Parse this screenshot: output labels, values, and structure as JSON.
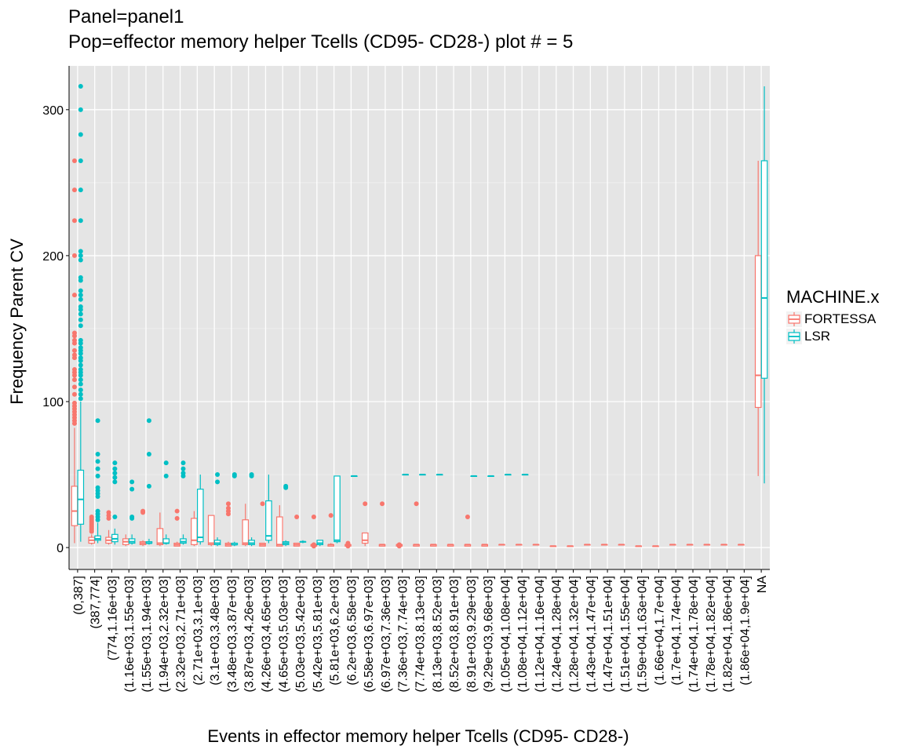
{
  "chart_data": {
    "type": "boxplot",
    "title": "Panel=panel1",
    "subtitle": "Pop=effector memory helper Tcells (CD95- CD28-) plot # = 5",
    "xlabel": "Events in effector memory helper Tcells (CD95- CD28-)",
    "ylabel": "Frequency Parent CV",
    "ylim": [
      -15,
      330
    ],
    "yticks": [
      0,
      100,
      200,
      300
    ],
    "grid": true,
    "legend": {
      "title": "MACHINE.x",
      "placement": "right",
      "entries": [
        {
          "name": "FORTESSA",
          "color": "#F8766D"
        },
        {
          "name": "LSR",
          "color": "#00BFC4"
        }
      ]
    },
    "categories": [
      "(0,387]",
      "(387,774]",
      "(774,1.16e+03]",
      "(1.16e+03,1.55e+03]",
      "(1.55e+03,1.94e+03]",
      "(1.94e+03,2.32e+03]",
      "(2.32e+03,2.71e+03]",
      "(2.71e+03,3.1e+03]",
      "(3.1e+03,3.48e+03]",
      "(3.48e+03,3.87e+03]",
      "(3.87e+03,4.26e+03]",
      "(4.26e+03,4.65e+03]",
      "(4.65e+03,5.03e+03]",
      "(5.03e+03,5.42e+03]",
      "(5.42e+03,5.81e+03]",
      "(5.81e+03,6.2e+03]",
      "(6.2e+03,6.58e+03]",
      "(6.58e+03,6.97e+03]",
      "(6.97e+03,7.36e+03]",
      "(7.36e+03,7.74e+03]",
      "(7.74e+03,8.13e+03]",
      "(8.13e+03,8.52e+03]",
      "(8.52e+03,8.91e+03]",
      "(8.91e+03,9.29e+03]",
      "(9.29e+03,9.68e+03]",
      "(1.05e+04,1.08e+04]",
      "(1.08e+04,1.12e+04]",
      "(1.12e+04,1.16e+04]",
      "(1.24e+04,1.28e+04]",
      "(1.28e+04,1.32e+04]",
      "(1.43e+04,1.47e+04]",
      "(1.47e+04,1.51e+04]",
      "(1.51e+04,1.55e+04]",
      "(1.59e+04,1.63e+04]",
      "(1.66e+04,1.7e+04]",
      "(1.7e+04,1.74e+04]",
      "(1.74e+04,1.78e+04]",
      "(1.78e+04,1.82e+04]",
      "(1.82e+04,1.86e+04]",
      "(1.86e+04,1.9e+04]",
      "NA"
    ],
    "series": [
      {
        "name": "FORTESSA",
        "color": "#F8766D",
        "boxes": [
          {
            "cat": 0,
            "min": 3,
            "q1": 15,
            "median": 25,
            "q3": 42,
            "max": 82,
            "outliers": [
              85,
              87,
              89,
              91,
              93,
              95,
              97,
              99,
              105,
              110,
              115,
              118,
              120,
              122,
              130,
              132,
              135,
              140,
              142,
              145,
              147,
              173,
              200,
              224,
              245,
              265
            ]
          },
          {
            "cat": 1,
            "min": 2,
            "q1": 3,
            "median": 5,
            "q3": 7,
            "max": 9,
            "outliers": [
              11,
              12,
              13,
              14,
              15,
              16,
              17,
              18,
              19,
              20,
              21
            ]
          },
          {
            "cat": 2,
            "min": 2,
            "q1": 3,
            "median": 5,
            "q3": 7,
            "max": 12,
            "outliers": [
              20,
              22,
              24
            ]
          },
          {
            "cat": 3,
            "min": 1,
            "q1": 2,
            "median": 4,
            "q3": 6,
            "max": 9,
            "outliers": []
          },
          {
            "cat": 4,
            "min": 1,
            "q1": 2,
            "median": 3,
            "q3": 4,
            "max": 5,
            "outliers": [
              24,
              25
            ]
          },
          {
            "cat": 5,
            "min": 1,
            "q1": 2,
            "median": 3,
            "q3": 13,
            "max": 24,
            "outliers": []
          },
          {
            "cat": 6,
            "min": 1,
            "q1": 1,
            "median": 2,
            "q3": 3,
            "max": 4,
            "outliers": [
              20,
              25
            ]
          },
          {
            "cat": 7,
            "min": 1,
            "q1": 2,
            "median": 5,
            "q3": 20,
            "max": 25,
            "outliers": []
          },
          {
            "cat": 8,
            "min": 1,
            "q1": 2,
            "median": 3,
            "q3": 22,
            "max": 22,
            "outliers": []
          },
          {
            "cat": 9,
            "min": 1,
            "q1": 1,
            "median": 2,
            "q3": 3,
            "max": 4,
            "outliers": [
              23,
              25,
              27,
              30
            ]
          },
          {
            "cat": 10,
            "min": 1,
            "q1": 2,
            "median": 3,
            "q3": 19,
            "max": 30,
            "outliers": []
          },
          {
            "cat": 11,
            "min": 1,
            "q1": 1,
            "median": 2,
            "q3": 3,
            "max": 3,
            "outliers": [
              30
            ]
          },
          {
            "cat": 12,
            "min": 1,
            "q1": 1,
            "median": 2,
            "q3": 21,
            "max": 29,
            "outliers": []
          },
          {
            "cat": 13,
            "min": 1,
            "q1": 1,
            "median": 2,
            "q3": 3,
            "max": 3,
            "outliers": [
              21
            ]
          },
          {
            "cat": 14,
            "min": 1,
            "q1": 1,
            "median": 2,
            "q3": 2,
            "max": 3,
            "outliers": [
              1,
              2,
              21
            ]
          },
          {
            "cat": 15,
            "min": 1,
            "q1": 1,
            "median": 2,
            "q3": 2,
            "max": 3,
            "outliers": [
              22
            ]
          },
          {
            "cat": 16,
            "min": 1,
            "q1": 1,
            "median": 2,
            "q3": 2,
            "max": 3,
            "outliers": [
              1,
              3
            ]
          },
          {
            "cat": 17,
            "min": 1,
            "q1": 3,
            "median": 5,
            "q3": 10,
            "max": 10,
            "outliers": [
              30
            ]
          },
          {
            "cat": 18,
            "min": 1,
            "q1": 1,
            "median": 2,
            "q3": 2,
            "max": 2,
            "outliers": [
              30
            ]
          },
          {
            "cat": 19,
            "min": 1,
            "q1": 1,
            "median": 2,
            "q3": 2,
            "max": 2,
            "outliers": [
              1,
              2
            ]
          },
          {
            "cat": 20,
            "min": 1,
            "q1": 1,
            "median": 2,
            "q3": 2,
            "max": 2,
            "outliers": [
              30
            ]
          },
          {
            "cat": 21,
            "min": 1,
            "q1": 1,
            "median": 2,
            "q3": 2,
            "max": 2,
            "outliers": []
          },
          {
            "cat": 22,
            "min": 1,
            "q1": 1,
            "median": 2,
            "q3": 2,
            "max": 2,
            "outliers": []
          },
          {
            "cat": 23,
            "min": 1,
            "q1": 1,
            "median": 2,
            "q3": 2,
            "max": 2,
            "outliers": [
              21
            ]
          },
          {
            "cat": 24,
            "min": 1,
            "q1": 1,
            "median": 2,
            "q3": 2,
            "max": 2,
            "outliers": []
          },
          {
            "cat": 25,
            "min": 2,
            "q1": 2,
            "median": 2,
            "q3": 2,
            "max": 2,
            "outliers": []
          },
          {
            "cat": 26,
            "min": 2,
            "q1": 2,
            "median": 2,
            "q3": 2,
            "max": 2,
            "outliers": []
          },
          {
            "cat": 27,
            "min": 2,
            "q1": 2,
            "median": 2,
            "q3": 2,
            "max": 2,
            "outliers": []
          },
          {
            "cat": 28,
            "min": 1,
            "q1": 1,
            "median": 1,
            "q3": 1,
            "max": 1,
            "outliers": []
          },
          {
            "cat": 29,
            "min": 1,
            "q1": 1,
            "median": 1,
            "q3": 1,
            "max": 1,
            "outliers": []
          },
          {
            "cat": 30,
            "min": 2,
            "q1": 2,
            "median": 2,
            "q3": 2,
            "max": 2,
            "outliers": []
          },
          {
            "cat": 31,
            "min": 2,
            "q1": 2,
            "median": 2,
            "q3": 2,
            "max": 2,
            "outliers": []
          },
          {
            "cat": 32,
            "min": 2,
            "q1": 2,
            "median": 2,
            "q3": 2,
            "max": 2,
            "outliers": []
          },
          {
            "cat": 33,
            "min": 1,
            "q1": 1,
            "median": 1,
            "q3": 1,
            "max": 1,
            "outliers": []
          },
          {
            "cat": 34,
            "min": 1,
            "q1": 1,
            "median": 1,
            "q3": 1,
            "max": 1,
            "outliers": []
          },
          {
            "cat": 35,
            "min": 2,
            "q1": 2,
            "median": 2,
            "q3": 2,
            "max": 2,
            "outliers": []
          },
          {
            "cat": 36,
            "min": 2,
            "q1": 2,
            "median": 2,
            "q3": 2,
            "max": 2,
            "outliers": []
          },
          {
            "cat": 37,
            "min": 2,
            "q1": 2,
            "median": 2,
            "q3": 2,
            "max": 2,
            "outliers": []
          },
          {
            "cat": 38,
            "min": 2,
            "q1": 2,
            "median": 2,
            "q3": 2,
            "max": 2,
            "outliers": []
          },
          {
            "cat": 39,
            "min": 2,
            "q1": 2,
            "median": 2,
            "q3": 2,
            "max": 2,
            "outliers": []
          },
          {
            "cat": 40,
            "min": 49,
            "q1": 96,
            "median": 118,
            "q3": 200,
            "max": 265,
            "outliers": []
          }
        ]
      },
      {
        "name": "LSR",
        "color": "#00BFC4",
        "boxes": [
          {
            "cat": 0,
            "min": 4,
            "q1": 16,
            "median": 33,
            "q3": 53,
            "max": 100,
            "outliers": [
              102,
              105,
              108,
              112,
              115,
              118,
              120,
              122,
              125,
              128,
              130,
              133,
              135,
              137,
              140,
              142,
              152,
              156,
              160,
              163,
              165,
              170,
              173,
              176,
              183,
              185,
              197,
              200,
              203,
              224,
              245,
              265,
              283,
              300,
              316
            ]
          },
          {
            "cat": 1,
            "min": 3,
            "q1": 5,
            "median": 6,
            "q3": 8,
            "max": 17,
            "outliers": [
              19,
              21,
              23,
              25,
              35,
              37,
              39,
              41,
              49,
              54,
              59,
              64,
              87
            ]
          },
          {
            "cat": 2,
            "min": 2,
            "q1": 4,
            "median": 6,
            "q3": 9,
            "max": 13,
            "outliers": [
              21,
              45,
              48,
              51,
              54,
              58
            ]
          },
          {
            "cat": 3,
            "min": 2,
            "q1": 3,
            "median": 4,
            "q3": 6,
            "max": 9,
            "outliers": [
              20,
              21,
              40,
              45
            ]
          },
          {
            "cat": 4,
            "min": 2,
            "q1": 3,
            "median": 3,
            "q3": 4,
            "max": 6,
            "outliers": [
              42,
              64,
              87
            ]
          },
          {
            "cat": 5,
            "min": 2,
            "q1": 3,
            "median": 3,
            "q3": 6,
            "max": 9,
            "outliers": [
              49,
              58
            ]
          },
          {
            "cat": 6,
            "min": 2,
            "q1": 3,
            "median": 4,
            "q3": 6,
            "max": 9,
            "outliers": [
              49,
              51,
              54,
              58
            ]
          },
          {
            "cat": 7,
            "min": 2,
            "q1": 4,
            "median": 7,
            "q3": 40,
            "max": 50,
            "outliers": []
          },
          {
            "cat": 8,
            "min": 1,
            "q1": 2,
            "median": 3,
            "q3": 5,
            "max": 7,
            "outliers": [
              45,
              50
            ]
          },
          {
            "cat": 9,
            "min": 1,
            "q1": 2,
            "median": 2,
            "q3": 3,
            "max": 4,
            "outliers": [
              49,
              50
            ]
          },
          {
            "cat": 10,
            "min": 1,
            "q1": 2,
            "median": 3,
            "q3": 5,
            "max": 7,
            "outliers": [
              49,
              50
            ]
          },
          {
            "cat": 11,
            "min": 3,
            "q1": 5,
            "median": 8,
            "q3": 32,
            "max": 50,
            "outliers": []
          },
          {
            "cat": 12,
            "min": 1,
            "q1": 2,
            "median": 3,
            "q3": 4,
            "max": 5,
            "outliers": [
              41,
              42
            ]
          },
          {
            "cat": 13,
            "min": 3,
            "q1": 4,
            "median": 4,
            "q3": 4,
            "max": 5,
            "outliers": []
          },
          {
            "cat": 14,
            "min": 1,
            "q1": 2,
            "median": 3,
            "q3": 5,
            "max": 5,
            "outliers": []
          },
          {
            "cat": 15,
            "min": 3,
            "q1": 4,
            "median": 5,
            "q3": 49,
            "max": 49,
            "outliers": []
          },
          {
            "cat": 16,
            "min": 49,
            "q1": 49,
            "median": 49,
            "q3": 49,
            "max": 49,
            "outliers": []
          },
          {
            "cat": 19,
            "min": 50,
            "q1": 50,
            "median": 50,
            "q3": 50,
            "max": 50,
            "outliers": []
          },
          {
            "cat": 20,
            "min": 50,
            "q1": 50,
            "median": 50,
            "q3": 50,
            "max": 50,
            "outliers": []
          },
          {
            "cat": 21,
            "min": 50,
            "q1": 50,
            "median": 50,
            "q3": 50,
            "max": 50,
            "outliers": []
          },
          {
            "cat": 23,
            "min": 49,
            "q1": 49,
            "median": 49,
            "q3": 49,
            "max": 49,
            "outliers": []
          },
          {
            "cat": 24,
            "min": 49,
            "q1": 49,
            "median": 49,
            "q3": 49,
            "max": 49,
            "outliers": []
          },
          {
            "cat": 25,
            "min": 50,
            "q1": 50,
            "median": 50,
            "q3": 50,
            "max": 50,
            "outliers": []
          },
          {
            "cat": 26,
            "min": 50,
            "q1": 50,
            "median": 50,
            "q3": 50,
            "max": 50,
            "outliers": []
          },
          {
            "cat": 40,
            "min": 44,
            "q1": 116,
            "median": 171,
            "q3": 265,
            "max": 316,
            "outliers": []
          }
        ]
      }
    ]
  }
}
